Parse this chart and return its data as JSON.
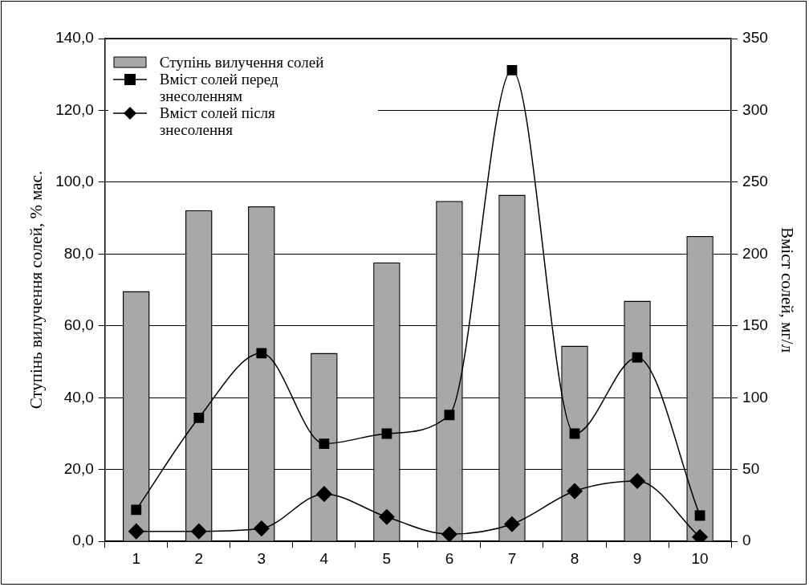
{
  "chart_data": {
    "type": "bar",
    "categories": [
      "1",
      "2",
      "3",
      "4",
      "5",
      "6",
      "7",
      "8",
      "9",
      "10"
    ],
    "series": [
      {
        "name": "Ступінь вилучення солей",
        "type": "bar",
        "color": "#a8a8a8",
        "values": [
          69.7,
          92.2,
          93.3,
          52.5,
          77.7,
          94.8,
          96.5,
          54.5,
          67.0,
          85.0
        ]
      },
      {
        "name": "Вміст солей перед знесоленням",
        "type": "line",
        "axis": "y2",
        "marker": "square",
        "color": "#000000",
        "values": [
          22,
          86,
          131,
          68,
          75,
          88,
          328,
          75,
          128,
          18
        ]
      },
      {
        "name": "Вміст солей після знесолення",
        "type": "line",
        "axis": "y2",
        "marker": "diamond",
        "color": "#000000",
        "values": [
          7,
          7,
          9,
          33,
          17,
          5,
          12,
          35,
          42,
          3
        ]
      }
    ],
    "ylabel": "Ступінь вилучення солей, % мас.",
    "y2label": "Вміст солей, мг/л",
    "ylim": [
      0,
      140
    ],
    "yticks": [
      {
        "value": 0,
        "label": "0,0"
      },
      {
        "value": 20,
        "label": "20,0"
      },
      {
        "value": 40,
        "label": "40,0"
      },
      {
        "value": 60,
        "label": "60,0"
      },
      {
        "value": 80,
        "label": "80,0"
      },
      {
        "value": 100,
        "label": "100,0"
      },
      {
        "value": 120,
        "label": "120,0"
      },
      {
        "value": 140,
        "label": "140,0"
      }
    ],
    "y2lim": [
      0,
      350
    ],
    "y2ticks": [
      0,
      50,
      100,
      150,
      200,
      250,
      300,
      350
    ],
    "grid": "y",
    "legend": "top left"
  }
}
